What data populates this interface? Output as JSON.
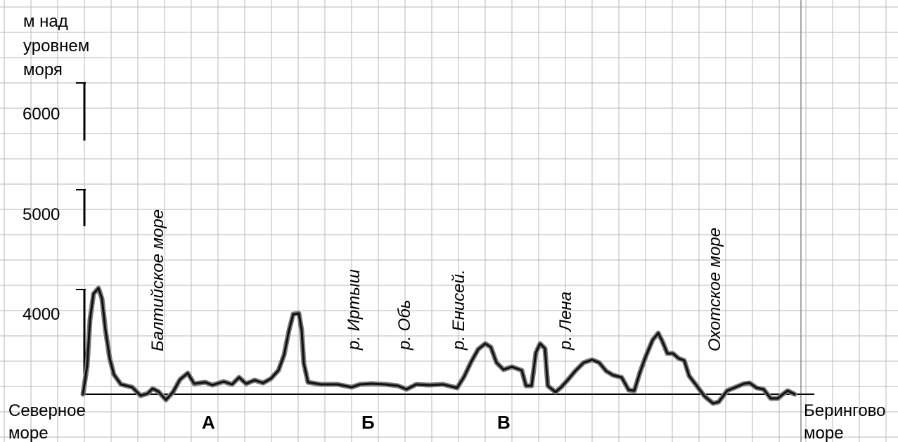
{
  "axis": {
    "title_lines": [
      "м над",
      "уровнем",
      "моря"
    ],
    "ticks": [
      "6000",
      "5000",
      "4000"
    ]
  },
  "endpoints": {
    "left": [
      "Северное",
      "море"
    ],
    "right": [
      "Берингово",
      "море"
    ]
  },
  "features": {
    "baltic": "Балтийское море",
    "irtysh": "р. Иртыш",
    "ob": "р. Обь",
    "yenisei": "р. Енисей.",
    "lena": "р. Лена",
    "okhotsk": "Охотское море"
  },
  "segments": [
    "А",
    "Б",
    "В"
  ]
}
